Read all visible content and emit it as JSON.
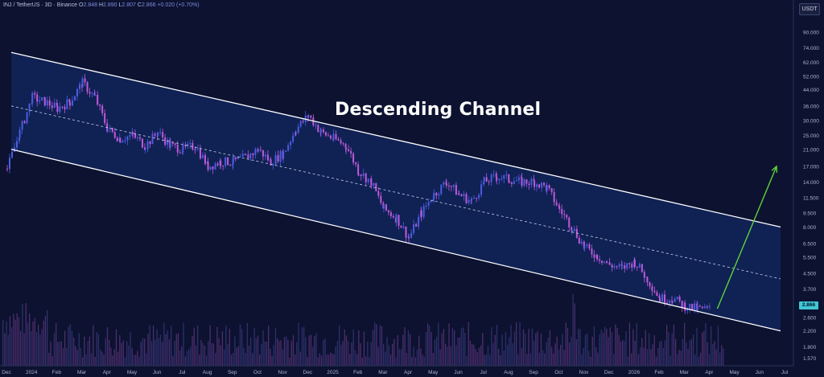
{
  "header": {
    "symbol": "INJ / TetherUS · 3D · Binance",
    "o_label": "O",
    "o_value": "2.848",
    "h_label": "H",
    "h_value": "2.890",
    "l_label": "L",
    "l_value": "2.807",
    "c_label": "C",
    "c_value": "2.866",
    "change": "+0.020 (+0.70%)"
  },
  "currency_button": "USDT",
  "last_price_tag": "2.866",
  "annotation": "Descending Channel",
  "colors": {
    "background": "#0c1230",
    "channel_fill": "#12245a",
    "channel_lines": "#ffffff",
    "candle_up": "#4a5de0",
    "candle_down": "#c05ad8",
    "projection_arrow": "#5fd23a",
    "price_tag": "#3fc7d6"
  },
  "chart_data": {
    "type": "candlestick",
    "scale": "log",
    "title": "",
    "xlabel": "",
    "ylabel": "",
    "x_ticks": [
      "Dec",
      "2024",
      "Feb",
      "Mar",
      "Apr",
      "May",
      "Jun",
      "Jul",
      "Aug",
      "Sep",
      "Oct",
      "Nov",
      "Dec",
      "2025",
      "Feb",
      "Mar",
      "Apr",
      "May",
      "Jun",
      "Jul",
      "Aug",
      "Sep",
      "Oct",
      "Nov",
      "Dec",
      "2026",
      "Feb",
      "Mar",
      "Apr",
      "May",
      "Jun",
      "Jul"
    ],
    "y_ticks": [
      "90.000",
      "74.000",
      "62.000",
      "52.000",
      "44.000",
      "36.000",
      "30.000",
      "25.000",
      "21.000",
      "17.000",
      "14.000",
      "11.500",
      "9.500",
      "8.000",
      "6.500",
      "5.500",
      "4.500",
      "3.700",
      "3.100",
      "2.600",
      "2.200",
      "1.800",
      "1.570"
    ],
    "ylim": [
      1.5,
      110
    ],
    "series": [
      {
        "points": [
          [
            "Dec 2023",
            16.5
          ],
          [
            "Dec 2023",
            26
          ],
          [
            "2024",
            40
          ],
          [
            "2024",
            38
          ],
          [
            "Feb 2024",
            35
          ],
          [
            "Feb 2024",
            38
          ],
          [
            "Mar 2024",
            48
          ],
          [
            "Mar 2024",
            40
          ],
          [
            "Apr 2024",
            27
          ],
          [
            "Apr 2024",
            24
          ],
          [
            "May 2024",
            25
          ],
          [
            "May 2024",
            22
          ],
          [
            "Jun 2024",
            26
          ],
          [
            "Jun 2024",
            22
          ],
          [
            "Jul 2024",
            21
          ],
          [
            "Jul 2024",
            22
          ],
          [
            "Aug 2024",
            17
          ],
          [
            "Aug 2024",
            18
          ],
          [
            "Sep 2024",
            18
          ],
          [
            "Sep 2024",
            19
          ],
          [
            "Oct 2024",
            21
          ],
          [
            "Oct 2024",
            18
          ],
          [
            "Nov 2024",
            20
          ],
          [
            "Nov 2024",
            27
          ],
          [
            "Dec 2024",
            32
          ],
          [
            "Dec 2024",
            26
          ],
          [
            "2025",
            24
          ],
          [
            "2025",
            22
          ],
          [
            "Feb 2025",
            16
          ],
          [
            "Feb 2025",
            14
          ],
          [
            "Mar 2025",
            10
          ],
          [
            "Mar 2025",
            9
          ],
          [
            "Apr 2025",
            7
          ],
          [
            "Apr 2025",
            9.5
          ],
          [
            "May 2025",
            12
          ],
          [
            "May 2025",
            14
          ],
          [
            "Jun 2025",
            12
          ],
          [
            "Jun 2025",
            11
          ],
          [
            "Jul 2025",
            14
          ],
          [
            "Jul 2025",
            15
          ],
          [
            "Aug 2025",
            14.5
          ],
          [
            "Aug 2025",
            14
          ],
          [
            "Sep 2025",
            14
          ],
          [
            "Sep 2025",
            13
          ],
          [
            "Oct 2025",
            10
          ],
          [
            "Oct 2025",
            8
          ],
          [
            "Nov 2025",
            6.2
          ],
          [
            "Nov 2025",
            5.6
          ],
          [
            "Dec 2025",
            5
          ],
          [
            "Dec 2025",
            4.8
          ],
          [
            "2026",
            5.2
          ],
          [
            "2026",
            4.2
          ],
          [
            "Feb 2026",
            3.3
          ],
          [
            "Feb 2026",
            3.3
          ],
          [
            "Mar 2026",
            3.0
          ],
          [
            "Mar 2026",
            2.9
          ],
          [
            "Apr 2026",
            2.866
          ]
        ]
      }
    ],
    "channel": {
      "upper": [
        [
          "Dec 2023",
          70
        ],
        [
          "Jun 2026",
          8.0
        ]
      ],
      "middle": [
        [
          "Dec 2023",
          36
        ],
        [
          "Jun 2026",
          4.2
        ]
      ],
      "lower": [
        [
          "Dec 2023",
          21
        ],
        [
          "Jun 2026",
          2.2
        ]
      ]
    },
    "projection": [
      [
        "Apr 2026",
        2.9
      ],
      [
        "May 2026",
        17
      ]
    ],
    "volume": true,
    "grid": false
  }
}
